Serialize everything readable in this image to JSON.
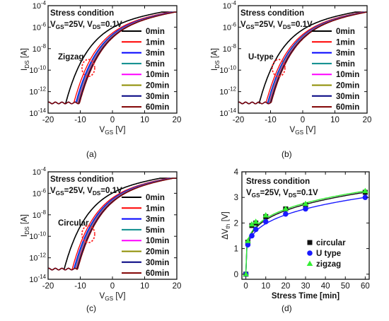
{
  "chart_data": [
    {
      "type": "line",
      "panel_label": "(a)",
      "annotation_title": "Stress condition",
      "annotation_cond": [
        "V",
        "GS",
        "=25V, V",
        "DS",
        "=0.1V"
      ],
      "structure_label": "Zigzag",
      "xlabel": [
        "V",
        "GS",
        " [V]"
      ],
      "ylabel": [
        "I",
        "DS",
        " [A]"
      ],
      "y_log": true,
      "xlim": [
        -20,
        20
      ],
      "ylim_exp": [
        -14,
        -4
      ],
      "x_ticks": [
        "-20",
        "-10",
        "0",
        "10",
        "20"
      ],
      "y_ticks": [
        [
          "10",
          "-14"
        ],
        [
          "10",
          "-12"
        ],
        [
          "10",
          "-10"
        ],
        [
          "10",
          "-8"
        ],
        [
          "10",
          "-6"
        ],
        [
          "10",
          "-4"
        ]
      ],
      "legend_position": "right",
      "v_on_at_0min": -14.5,
      "v_shift": [
        0,
        2.5,
        3.1,
        3.4,
        3.7,
        3.9,
        4.1,
        4.3
      ],
      "series": [
        {
          "name": "0min",
          "color": "#000000"
        },
        {
          "name": "1min",
          "color": "#ff0000"
        },
        {
          "name": "3min",
          "color": "#0000ff"
        },
        {
          "name": "5min",
          "color": "#0a8c8c"
        },
        {
          "name": "10min",
          "color": "#ff00ff"
        },
        {
          "name": "20min",
          "color": "#8c8c00"
        },
        {
          "name": "30min",
          "color": "#000080"
        },
        {
          "name": "60min",
          "color": "#800000"
        }
      ]
    },
    {
      "type": "line",
      "panel_label": "(b)",
      "annotation_title": "Stress condition",
      "annotation_cond": [
        "V",
        "GS",
        "=25V, V",
        "DS",
        "=0.1V"
      ],
      "structure_label": "U-type",
      "xlabel": [
        "V",
        "GS",
        " [V]"
      ],
      "ylabel": [
        "I",
        "DS",
        " [A]"
      ],
      "y_log": true,
      "xlim": [
        -20,
        20
      ],
      "ylim_exp": [
        -14,
        -4
      ],
      "x_ticks": [
        "-20",
        "-10",
        "0",
        "10",
        "20"
      ],
      "y_ticks": [
        [
          "10",
          "-14"
        ],
        [
          "10",
          "-12"
        ],
        [
          "10",
          "-10"
        ],
        [
          "10",
          "-8"
        ],
        [
          "10",
          "-6"
        ],
        [
          "10",
          "-4"
        ]
      ],
      "legend_position": "right",
      "v_on_at_0min": -13.5,
      "v_shift": [
        0,
        2.1,
        2.6,
        2.8,
        3.1,
        3.3,
        3.5,
        3.7
      ],
      "series": [
        {
          "name": "0min",
          "color": "#000000"
        },
        {
          "name": "1min",
          "color": "#ff0000"
        },
        {
          "name": "3min",
          "color": "#0000ff"
        },
        {
          "name": "5min",
          "color": "#0a8c8c"
        },
        {
          "name": "10min",
          "color": "#ff00ff"
        },
        {
          "name": "20min",
          "color": "#8c8c00"
        },
        {
          "name": "30min",
          "color": "#000080"
        },
        {
          "name": "60min",
          "color": "#800000"
        }
      ]
    },
    {
      "type": "line",
      "panel_label": "(c)",
      "annotation_title": "Stress condition",
      "annotation_cond": [
        "V",
        "GS",
        "=25V, V",
        "DS",
        "=0.1V"
      ],
      "structure_label": "Circular",
      "xlabel": [
        "V",
        "GS",
        " [V]"
      ],
      "ylabel": [
        "I",
        "DS",
        " [A]"
      ],
      "y_log": true,
      "xlim": [
        -20,
        20
      ],
      "ylim_exp": [
        -14,
        -4
      ],
      "x_ticks": [
        "-20",
        "-10",
        "0",
        "10",
        "20"
      ],
      "y_ticks": [
        [
          "10",
          "-14"
        ],
        [
          "10",
          "-12"
        ],
        [
          "10",
          "-10"
        ],
        [
          "10",
          "-8"
        ],
        [
          "10",
          "-6"
        ],
        [
          "10",
          "-4"
        ]
      ],
      "legend_position": "right",
      "v_on_at_0min": -15,
      "v_shift": [
        0,
        2.5,
        3.0,
        3.3,
        3.6,
        3.8,
        4.0,
        4.2
      ],
      "series": [
        {
          "name": "0min",
          "color": "#000000"
        },
        {
          "name": "1min",
          "color": "#ff0000"
        },
        {
          "name": "3min",
          "color": "#0000ff"
        },
        {
          "name": "5min",
          "color": "#0a8c8c"
        },
        {
          "name": "10min",
          "color": "#ff00ff"
        },
        {
          "name": "20min",
          "color": "#8c8c00"
        },
        {
          "name": "30min",
          "color": "#000080"
        },
        {
          "name": "60min",
          "color": "#800000"
        }
      ]
    },
    {
      "type": "scatter",
      "panel_label": "(d)",
      "annotation_title": "Stress condition",
      "annotation_cond": [
        "V",
        "GS",
        "=25V, V",
        "DS",
        "=0.1V"
      ],
      "xlabel": [
        "Stress Time [min]"
      ],
      "ylabel": [
        "ΔV",
        "th",
        " [V]"
      ],
      "xlim": [
        -2,
        62
      ],
      "ylim": [
        -0.2,
        4
      ],
      "x_ticks": [
        0,
        10,
        20,
        30,
        40,
        50,
        60
      ],
      "y_ticks": [
        0,
        1,
        2,
        3,
        4
      ],
      "legend_position": "bottom-right",
      "x": [
        0,
        1,
        3,
        5,
        10,
        20,
        30,
        60
      ],
      "series": [
        {
          "name": "circular",
          "marker": "square",
          "color": "#111111",
          "values": [
            0,
            1.25,
            1.9,
            2.0,
            2.25,
            2.55,
            2.7,
            3.2
          ]
        },
        {
          "name": "U type",
          "marker": "circle",
          "color": "#1a1aff",
          "values": [
            0,
            1.15,
            1.5,
            1.75,
            2.05,
            2.35,
            2.55,
            3.0
          ]
        },
        {
          "name": "zigzag",
          "marker": "triangle",
          "color": "#33ee33",
          "values": [
            0,
            1.3,
            1.95,
            2.05,
            2.3,
            2.55,
            2.75,
            3.25
          ]
        }
      ]
    }
  ]
}
